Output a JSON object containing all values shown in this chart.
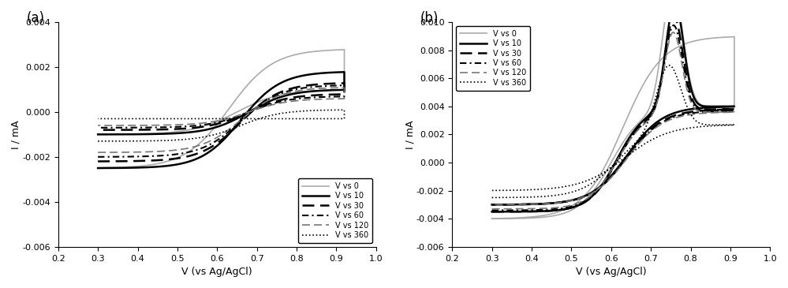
{
  "panel_a": {
    "title": "(a)",
    "xlabel": "V (vs Ag/AgCl)",
    "ylabel": "I / mA",
    "xlim": [
      0.2,
      1.0
    ],
    "ylim": [
      -0.006,
      0.004
    ],
    "yticks": [
      -0.006,
      -0.004,
      -0.002,
      0.0,
      0.002,
      0.004
    ],
    "xticks": [
      0.2,
      0.3,
      0.4,
      0.5,
      0.6,
      0.7,
      0.8,
      0.9,
      1.0
    ]
  },
  "panel_b": {
    "title": "(b)",
    "xlabel": "V (vs Ag/AgCl)",
    "ylabel": "I / mA",
    "xlim": [
      0.2,
      1.0
    ],
    "ylim": [
      -0.006,
      0.01
    ],
    "yticks": [
      -0.006,
      -0.004,
      -0.002,
      0.0,
      0.002,
      0.004,
      0.006,
      0.008,
      0.01
    ],
    "xticks": [
      0.2,
      0.3,
      0.4,
      0.5,
      0.6,
      0.7,
      0.8,
      0.9,
      1.0
    ]
  },
  "legend_labels": [
    "V vs 0",
    "V vs 10",
    "V vs 30",
    "V vs 60",
    "V vs 120",
    "V vs 360"
  ],
  "colors": {
    "0": "#aaaaaa",
    "10": "#000000",
    "30": "#000000",
    "60": "#000000",
    "120": "#777777",
    "360": "#000000"
  },
  "linestyles": {
    "0": "solid",
    "10": "solid",
    "30": "dashed",
    "60": "dashed",
    "120": "dashed",
    "360": "dotted"
  },
  "linewidths": {
    "0": 1.2,
    "10": 1.8,
    "30": 1.8,
    "60": 1.5,
    "120": 1.2,
    "360": 1.2
  },
  "dash_patterns": {
    "30": [
      6,
      3
    ],
    "60": [
      4,
      2,
      1,
      2
    ],
    "120": [
      6,
      3
    ]
  }
}
